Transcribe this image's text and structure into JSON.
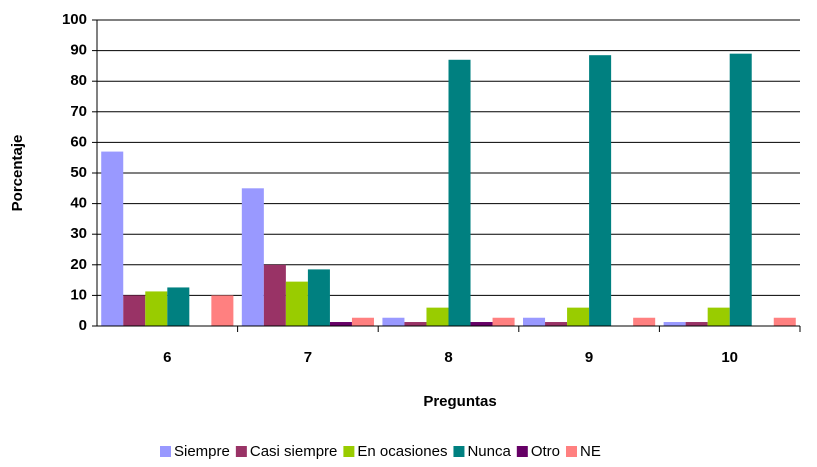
{
  "chart_data": {
    "type": "bar",
    "x_label": "Preguntas",
    "y_label": "Porcentaje",
    "categories": [
      "6",
      "7",
      "8",
      "9",
      "10"
    ],
    "series": [
      {
        "name": "Siempre",
        "color": "#9999ff",
        "values": [
          57,
          45,
          2.7,
          2.7,
          1.3
        ]
      },
      {
        "name": "Casi siempre",
        "color": "#993366",
        "values": [
          10,
          20,
          1.3,
          1.3,
          1.3
        ]
      },
      {
        "name": "En ocasiones",
        "color": "#99cc00",
        "values": [
          11.3,
          14.5,
          6,
          6,
          6
        ]
      },
      {
        "name": "Nunca",
        "color": "#008080",
        "values": [
          12.6,
          18.5,
          87,
          88.5,
          89
        ]
      },
      {
        "name": "Otro",
        "color": "#660066",
        "values": [
          0,
          1.3,
          1.3,
          0,
          0
        ]
      },
      {
        "name": "NE",
        "color": "#ff8080",
        "values": [
          10,
          2.7,
          2.7,
          2.7,
          2.7
        ]
      }
    ],
    "ylim": [
      0,
      100
    ],
    "yticks": [
      0,
      10,
      20,
      30,
      40,
      50,
      60,
      70,
      80,
      90,
      100
    ],
    "grid": true,
    "legend": "bottom"
  }
}
